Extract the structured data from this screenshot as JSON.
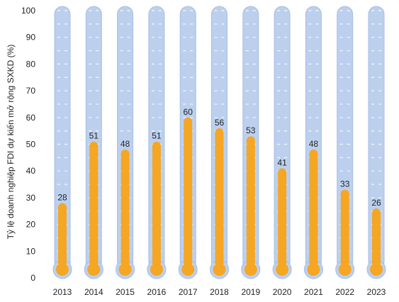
{
  "chart_data": {
    "type": "bar",
    "style": "thermometer",
    "title": "",
    "xlabel": "",
    "ylabel": "Tỷ lệ doanh nghiệp FDI dự kiến mở rộng SXKD (%)",
    "ylim": [
      0,
      100
    ],
    "yticks": [
      0,
      10,
      20,
      30,
      40,
      50,
      60,
      70,
      80,
      90,
      100
    ],
    "categories": [
      "2013",
      "2014",
      "2015",
      "2016",
      "2017",
      "2018",
      "2019",
      "2020",
      "2021",
      "2022",
      "2023"
    ],
    "values": [
      28,
      51,
      48,
      51,
      60,
      56,
      53,
      41,
      48,
      33,
      26
    ],
    "grid": false,
    "legend": "none",
    "colors": {
      "fill": "#F5A623",
      "tube": "#BCD0EE",
      "tube_border": "#A6BEE3",
      "tick_dash": "#FFFFFF"
    }
  }
}
